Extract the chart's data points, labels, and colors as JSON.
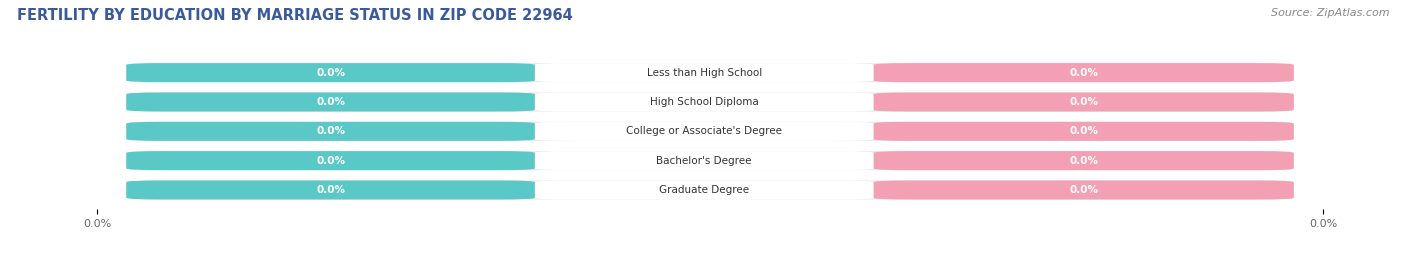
{
  "title": "FERTILITY BY EDUCATION BY MARRIAGE STATUS IN ZIP CODE 22964",
  "source": "Source: ZipAtlas.com",
  "categories": [
    "Less than High School",
    "High School Diploma",
    "College or Associate's Degree",
    "Bachelor's Degree",
    "Graduate Degree"
  ],
  "married_values": [
    0.0,
    0.0,
    0.0,
    0.0,
    0.0
  ],
  "unmarried_values": [
    0.0,
    0.0,
    0.0,
    0.0,
    0.0
  ],
  "married_color": "#5BC8C8",
  "unmarried_color": "#F4A0B4",
  "bar_bg_color": "#E8E8E8",
  "title_fontsize": 10.5,
  "source_fontsize": 8,
  "label_fontsize": 7.5,
  "tick_fontsize": 8,
  "legend_fontsize": 8.5
}
